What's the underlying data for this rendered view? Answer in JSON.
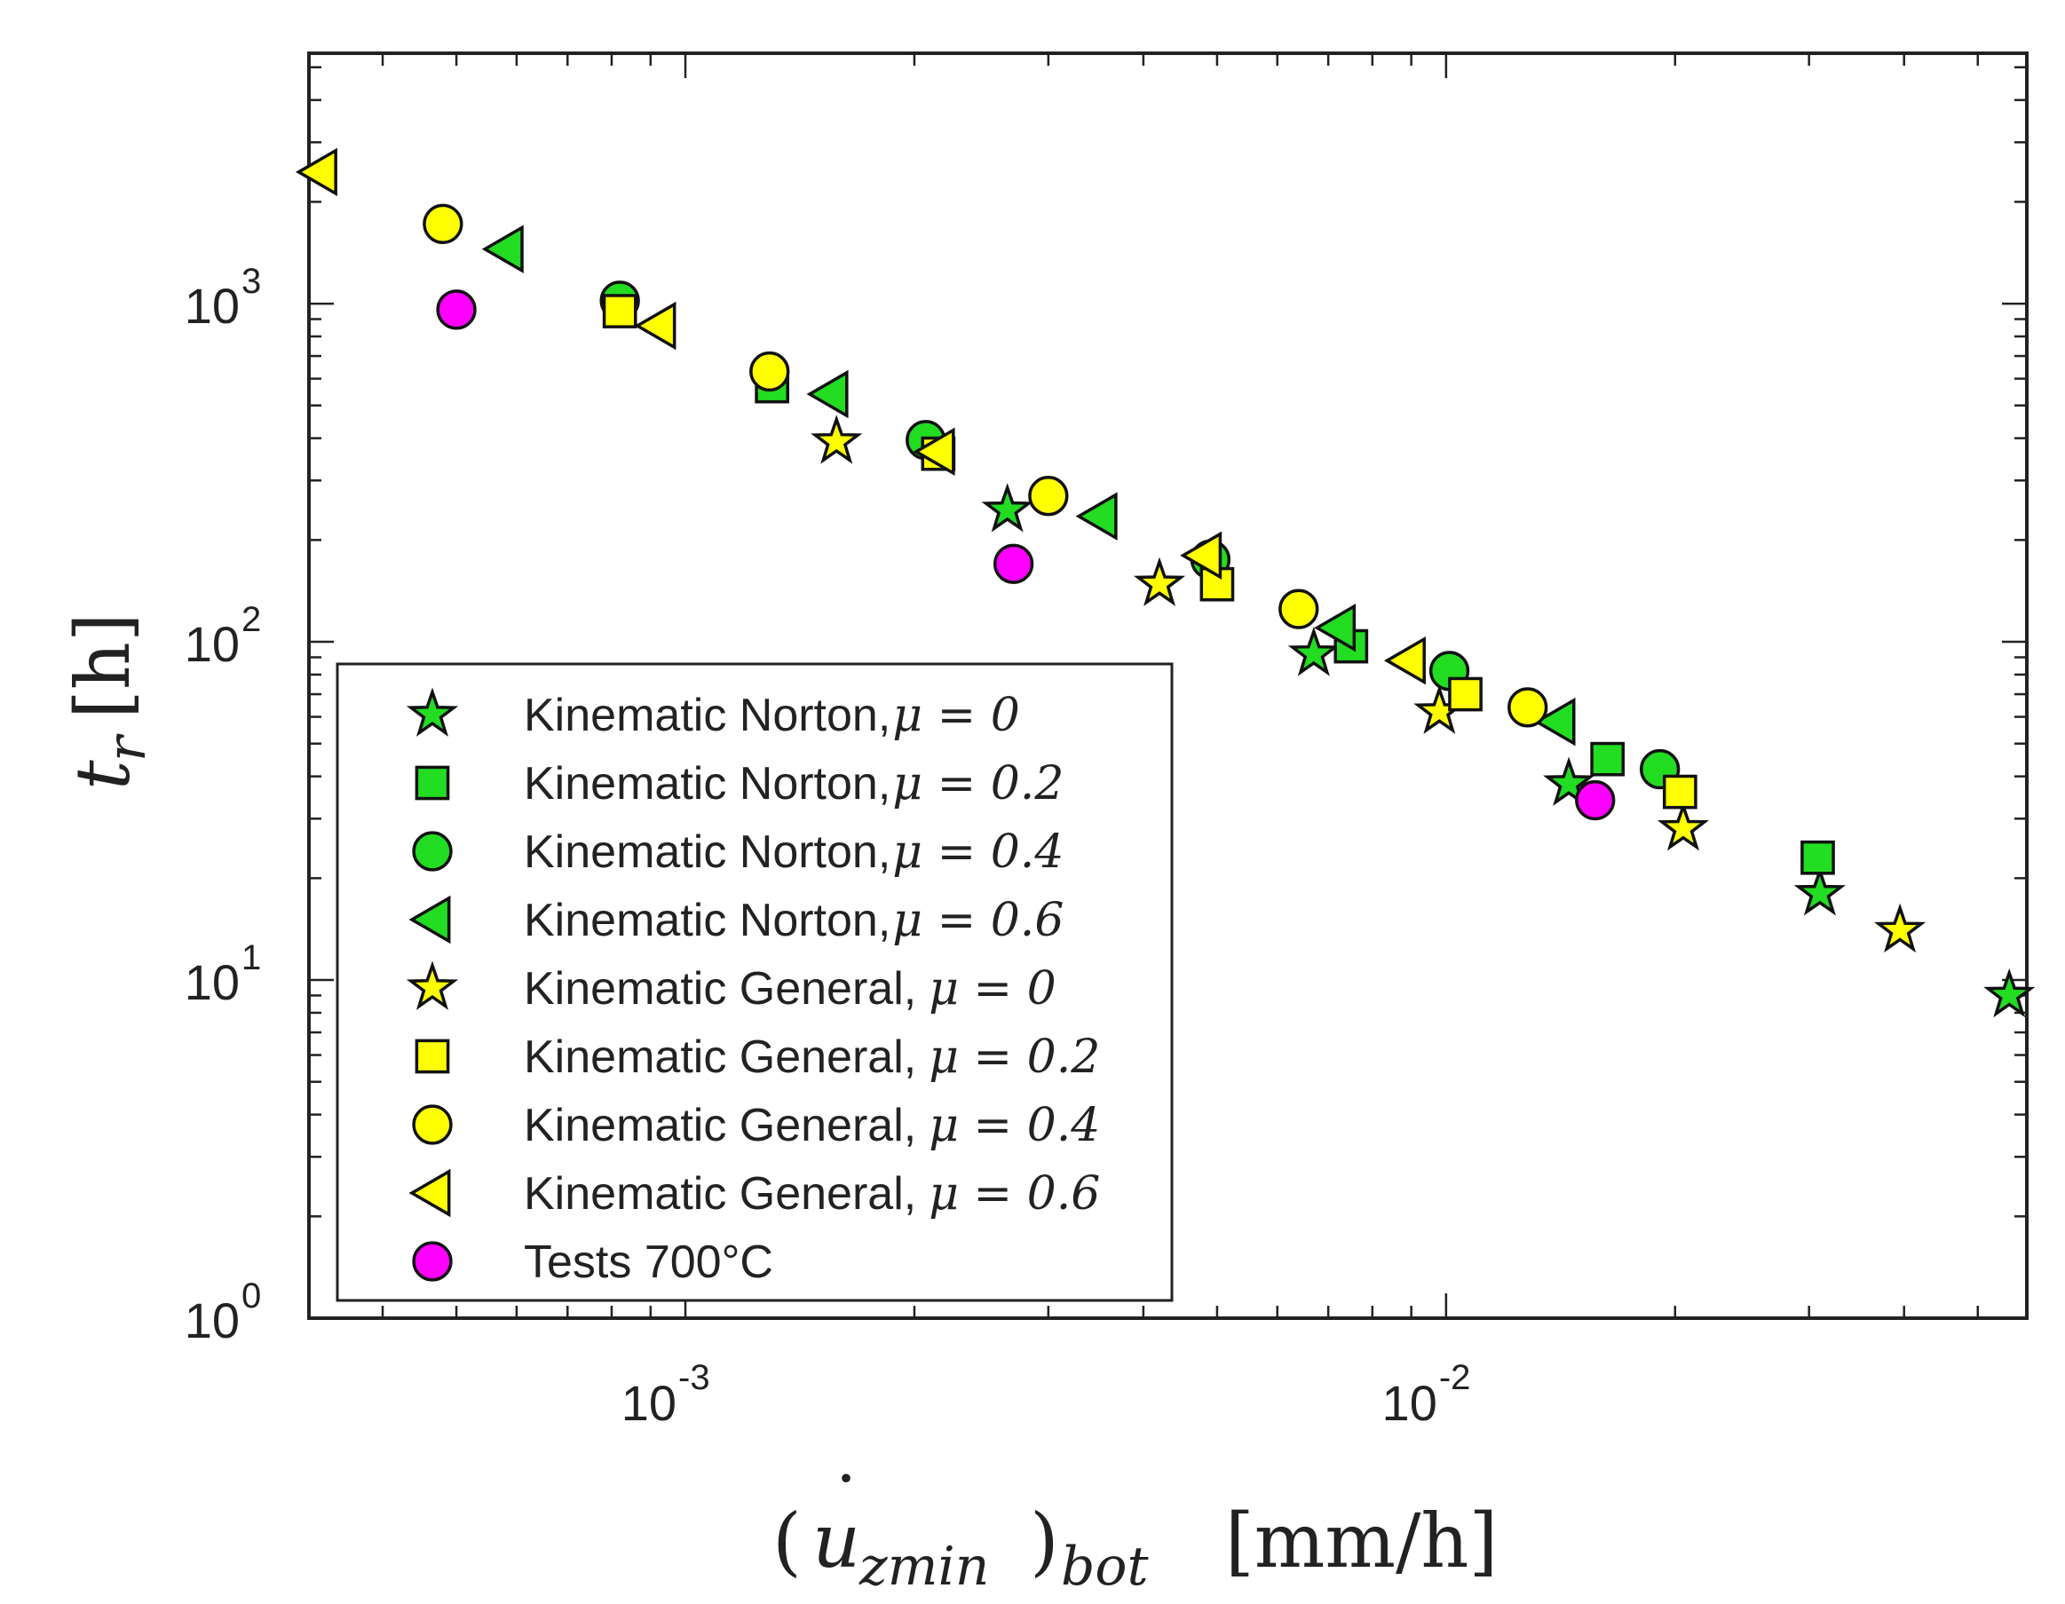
{
  "chart_data": {
    "type": "scatter",
    "xscale": "log",
    "yscale": "log",
    "xlim": [
      0.00032,
      0.058
    ],
    "ylim": [
      1,
      5500
    ],
    "title": "",
    "xlabel": {
      "open": "(",
      "var": "u",
      "dot": "˙",
      "sub": "zmin",
      "close": ")",
      "sub2": "bot",
      "units": "[mm/h]"
    },
    "ylabel": {
      "var": "t",
      "sub": "r",
      "units": "[h]"
    },
    "x_ticks": [
      {
        "value": 0.001,
        "base": "10",
        "exp": "-3"
      },
      {
        "value": 0.01,
        "base": "10",
        "exp": "-2"
      }
    ],
    "y_ticks": [
      {
        "value": 1,
        "base": "10",
        "exp": "0"
      },
      {
        "value": 10,
        "base": "10",
        "exp": "1"
      },
      {
        "value": 100,
        "base": "10",
        "exp": "2"
      },
      {
        "value": 1000,
        "base": "10",
        "exp": "3"
      }
    ],
    "legend_position": "bottom-left",
    "series": [
      {
        "name": "Kinematic Norton,",
        "mu": "μ = 0",
        "marker": "star",
        "color": "#22dd22",
        "x": [
          0.00265,
          0.0067,
          0.0145,
          0.031,
          0.055
        ],
        "y": [
          245,
          92,
          38,
          18,
          9
        ]
      },
      {
        "name": "Kinematic Norton,",
        "mu": "μ = 0.2",
        "marker": "square",
        "color": "#22dd22",
        "x": [
          0.0013,
          0.0075,
          0.0163,
          0.0308
        ],
        "y": [
          570,
          97,
          45,
          23
        ]
      },
      {
        "name": "Kinematic Norton,",
        "mu": "μ = 0.4",
        "marker": "circle",
        "color": "#22dd22",
        "x": [
          0.00082,
          0.00207,
          0.0049,
          0.0101,
          0.0191
        ],
        "y": [
          1020,
          395,
          175,
          82,
          42
        ]
      },
      {
        "name": "Kinematic Norton,",
        "mu": "μ = 0.6",
        "marker": "triangle-left",
        "color": "#22dd22",
        "x": [
          0.00058,
          0.00155,
          0.0035,
          0.0072,
          0.014
        ],
        "y": [
          1450,
          540,
          235,
          110,
          58
        ]
      },
      {
        "name": "Kinematic General,",
        "mu": "μ = 0",
        "marker": "star",
        "color": "#ffff00",
        "x": [
          0.00158,
          0.0042,
          0.0098,
          0.0205,
          0.0395
        ],
        "y": [
          390,
          148,
          62,
          28,
          14
        ]
      },
      {
        "name": "Kinematic General,",
        "mu": "μ = 0.2",
        "marker": "square",
        "color": "#ffff00",
        "x": [
          0.00082,
          0.00215,
          0.005,
          0.0106,
          0.0203
        ],
        "y": [
          950,
          360,
          148,
          70,
          36
        ]
      },
      {
        "name": "Kinematic General,",
        "mu": "μ = 0.4",
        "marker": "circle",
        "color": "#ffff00",
        "x": [
          0.00048,
          0.00129,
          0.003,
          0.0064,
          0.0128
        ],
        "y": [
          1720,
          630,
          270,
          125,
          64
        ]
      },
      {
        "name": "Kinematic General,",
        "mu": "μ = 0.6",
        "marker": "triangle-left",
        "color": "#ffff00",
        "x": [
          0.00033,
          0.00092,
          0.00214,
          0.0048,
          0.0089
        ],
        "y": [
          2450,
          860,
          365,
          180,
          88
        ]
      },
      {
        "name": "Tests 700°C",
        "mu": "",
        "marker": "circle",
        "color": "#ff00ff",
        "x": [
          0.0005,
          0.0027,
          0.0157
        ],
        "y": [
          960,
          170,
          34
        ]
      }
    ]
  }
}
